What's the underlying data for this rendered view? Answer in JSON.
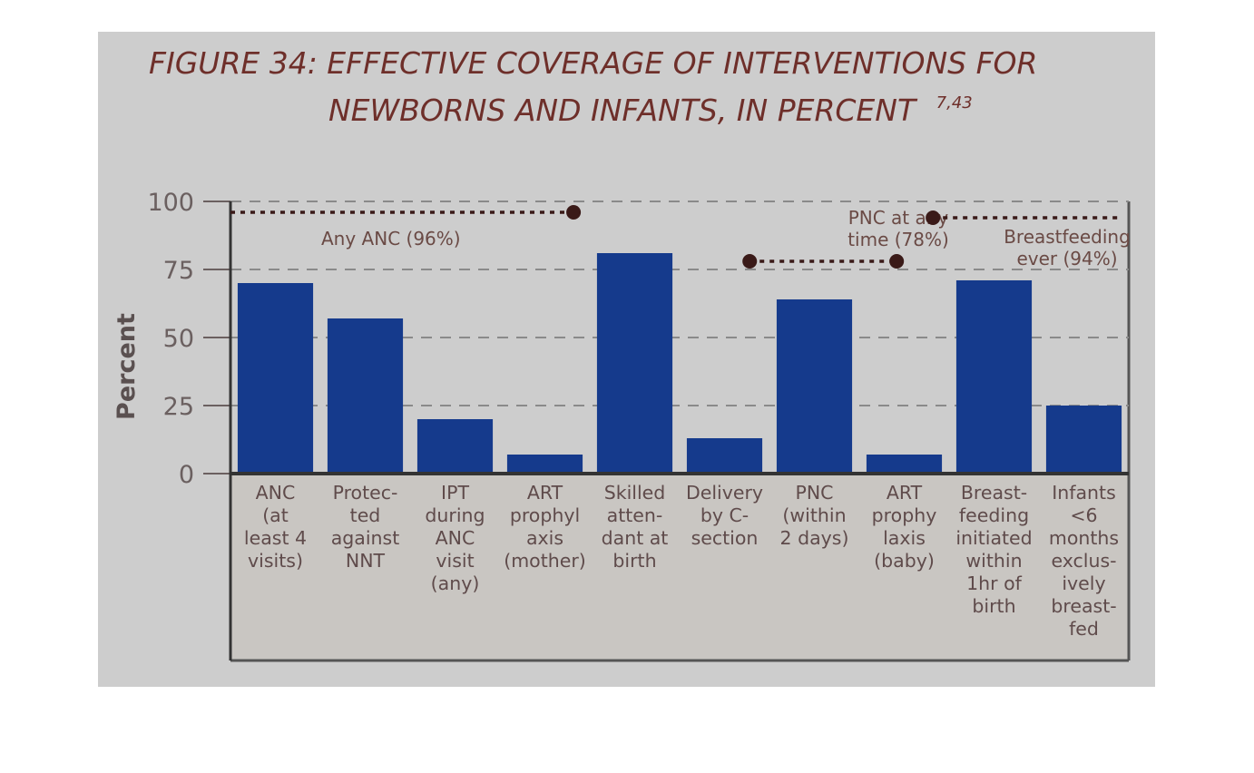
{
  "title": {
    "line1": "FIGURE 34: EFFECTIVE COVERAGE OF INTERVENTIONS FOR",
    "line2": "NEWBORNS AND INFANTS, IN PERCENT",
    "superscript": "7,43"
  },
  "colors": {
    "bar": "#153a8c",
    "reference_marker": "#3a1a18",
    "axis": "#333333"
  },
  "chart_data": {
    "type": "bar",
    "title": "FIGURE 34: EFFECTIVE COVERAGE OF INTERVENTIONS FOR NEWBORNS AND INFANTS, IN PERCENT",
    "xlabel": "",
    "ylabel": "Percent",
    "ylim": [
      0,
      100
    ],
    "yticks": [
      0,
      25,
      50,
      75,
      100
    ],
    "grid": true,
    "categories": [
      [
        "ANC",
        "(at",
        "least 4",
        "visits)"
      ],
      [
        "Protec-",
        "ted",
        "against",
        "NNT"
      ],
      [
        "IPT",
        "during",
        "ANC",
        "visit",
        "(any)"
      ],
      [
        "ART",
        "prophyl",
        "axis",
        "(mother)"
      ],
      [
        "Skilled",
        "atten-",
        "dant at",
        "birth"
      ],
      [
        "Delivery",
        "by C-",
        "section"
      ],
      [
        "PNC",
        "(within",
        "2 days)"
      ],
      [
        "ART",
        "prophy",
        "laxis",
        "(baby)"
      ],
      [
        "Breast-",
        "feeding",
        "initiated",
        "within",
        "1hr of",
        "birth"
      ],
      [
        "Infants",
        "<6",
        "months",
        "exclus-",
        "ively",
        "breast-",
        "fed"
      ]
    ],
    "values": [
      70,
      57,
      20,
      7,
      81,
      13,
      64,
      7,
      71,
      25
    ],
    "annotations": [
      {
        "label": [
          "Any ANC (96%)"
        ],
        "value": 96,
        "from_category": 0,
        "to_category": 3
      },
      {
        "label": [
          "PNC at any",
          "time (78%)"
        ],
        "value": 78,
        "from_category": 6,
        "to_category": 7
      },
      {
        "label": [
          "Breastfeeding",
          "ever (94%)"
        ],
        "value": 94,
        "from_category": 8,
        "to_category": 9
      }
    ]
  }
}
